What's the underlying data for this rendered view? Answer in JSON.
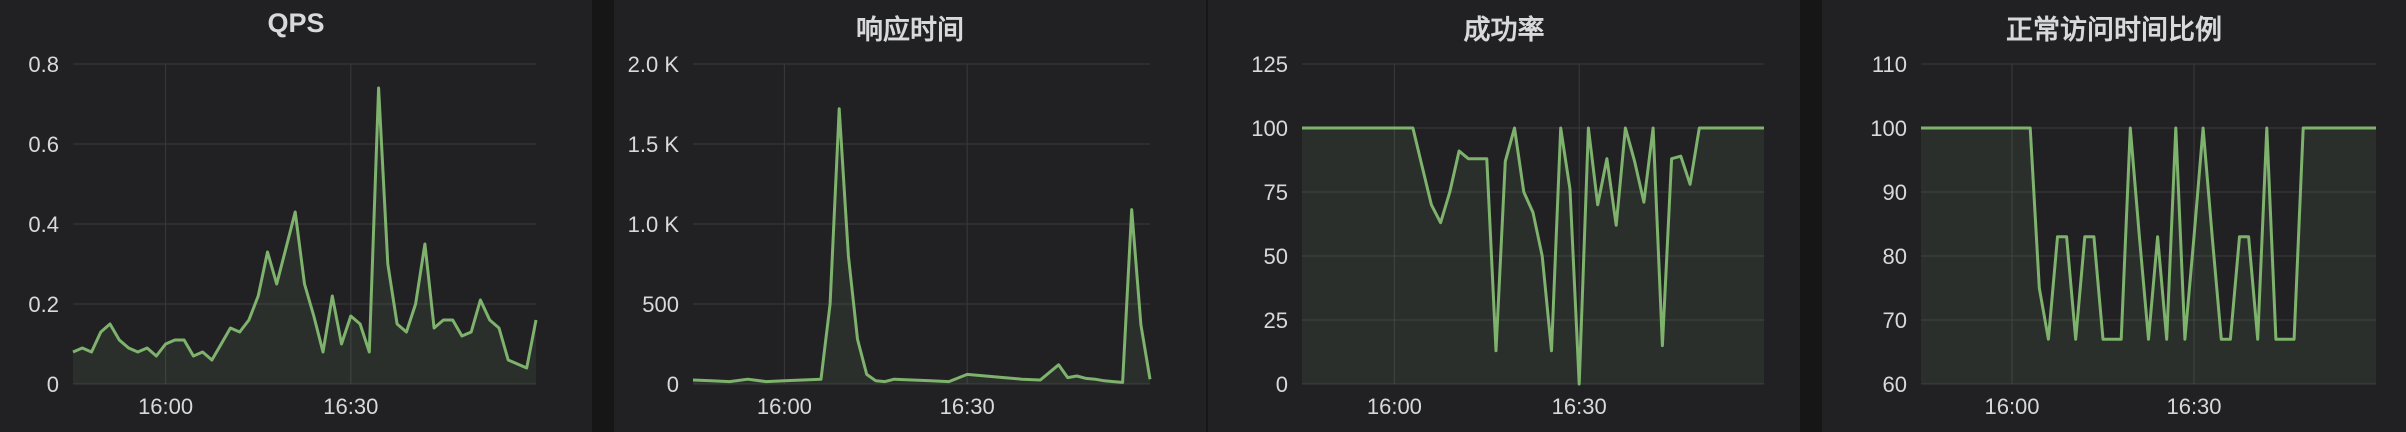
{
  "colors": {
    "series": "#7eb26d",
    "fill": "rgba(126,178,109,0.10)",
    "grid": "#3a3a3d",
    "text": "#d8d9da",
    "panel": "#212124",
    "background": "#161616"
  },
  "chart_data": [
    {
      "type": "area",
      "title": "QPS",
      "xlabel": "",
      "ylabel": "",
      "ylim": [
        0,
        0.8
      ],
      "yticks": [
        0,
        0.2,
        0.4,
        0.6,
        0.8
      ],
      "ytick_labels": [
        "0",
        "0.2",
        "0.4",
        "0.6",
        "0.8"
      ],
      "xlim": [
        0,
        50
      ],
      "xticks": [
        10,
        30
      ],
      "xtick_labels": [
        "16:00",
        "16:30"
      ],
      "grid": true,
      "series": [
        {
          "x": [
            0,
            1,
            2,
            3,
            4,
            5,
            6,
            7,
            8,
            9,
            10,
            11,
            12,
            13,
            14,
            15,
            16,
            17,
            18,
            19,
            20,
            21,
            22,
            23,
            24,
            25,
            26,
            27,
            28,
            29,
            30,
            31,
            32,
            33,
            34,
            35,
            36,
            37,
            38,
            39,
            40,
            41,
            42,
            43,
            44,
            45,
            46,
            47,
            48,
            49,
            50
          ],
          "values": [
            0.08,
            0.09,
            0.08,
            0.13,
            0.15,
            0.11,
            0.09,
            0.08,
            0.09,
            0.07,
            0.1,
            0.11,
            0.11,
            0.07,
            0.08,
            0.06,
            0.1,
            0.14,
            0.13,
            0.16,
            0.22,
            0.33,
            0.25,
            0.34,
            0.43,
            0.25,
            0.17,
            0.08,
            0.22,
            0.1,
            0.17,
            0.15,
            0.08,
            0.74,
            0.3,
            0.15,
            0.13,
            0.2,
            0.35,
            0.14,
            0.16,
            0.16,
            0.12,
            0.13,
            0.21,
            0.16,
            0.14,
            0.06,
            0.05,
            0.04,
            0.16
          ]
        }
      ]
    },
    {
      "type": "area",
      "title": "响应时间",
      "xlabel": "",
      "ylabel": "",
      "ylim": [
        0,
        2000
      ],
      "yticks": [
        0,
        500,
        1000,
        1500,
        2000
      ],
      "ytick_labels": [
        "0",
        "500",
        "1.0 K",
        "1.5 K",
        "2.0 K"
      ],
      "xlim": [
        0,
        50
      ],
      "xticks": [
        10,
        30
      ],
      "xtick_labels": [
        "16:00",
        "16:30"
      ],
      "grid": true,
      "series": [
        {
          "x": [
            0,
            2,
            4,
            6,
            8,
            10,
            12,
            14,
            15,
            16,
            17,
            18,
            19,
            20,
            21,
            22,
            24,
            26,
            28,
            30,
            32,
            34,
            36,
            38,
            40,
            41,
            42,
            43,
            44,
            45,
            46,
            47,
            48,
            49,
            50
          ],
          "values": [
            25,
            20,
            15,
            30,
            15,
            20,
            25,
            30,
            500,
            1720,
            800,
            280,
            60,
            20,
            15,
            30,
            25,
            20,
            15,
            60,
            50,
            40,
            30,
            25,
            120,
            40,
            50,
            35,
            30,
            20,
            15,
            10,
            1090,
            370,
            30
          ]
        }
      ]
    },
    {
      "type": "area",
      "title": "成功率",
      "xlabel": "",
      "ylabel": "",
      "ylim": [
        0,
        125
      ],
      "yticks": [
        0,
        25,
        50,
        75,
        100,
        125
      ],
      "ytick_labels": [
        "0",
        "25",
        "50",
        "75",
        "100",
        "125"
      ],
      "xlim": [
        0,
        50
      ],
      "xticks": [
        10,
        30
      ],
      "xtick_labels": [
        "16:00",
        "16:30"
      ],
      "grid": true,
      "series": [
        {
          "x": [
            0,
            2,
            4,
            6,
            8,
            10,
            12,
            13,
            14,
            15,
            16,
            17,
            18,
            19,
            20,
            21,
            22,
            23,
            24,
            25,
            26,
            27,
            28,
            29,
            30,
            31,
            32,
            33,
            34,
            35,
            36,
            37,
            38,
            39,
            40,
            41,
            42,
            43,
            44,
            45,
            46,
            48,
            50
          ],
          "values": [
            100,
            100,
            100,
            100,
            100,
            100,
            100,
            85,
            70,
            63,
            75,
            91,
            88,
            88,
            88,
            13,
            87,
            100,
            75,
            67,
            50,
            13,
            100,
            76,
            0,
            100,
            70,
            88,
            62,
            100,
            87,
            71,
            100,
            15,
            88,
            89,
            78,
            100,
            100,
            100,
            100,
            100,
            100
          ]
        }
      ]
    },
    {
      "type": "area",
      "title": "正常访问时间比例",
      "xlabel": "",
      "ylabel": "",
      "ylim": [
        60,
        110
      ],
      "yticks": [
        60,
        70,
        80,
        90,
        100,
        110
      ],
      "ytick_labels": [
        "60",
        "70",
        "80",
        "90",
        "100",
        "110"
      ],
      "xlim": [
        0,
        50
      ],
      "xticks": [
        10,
        30
      ],
      "xtick_labels": [
        "16:00",
        "16:30"
      ],
      "grid": true,
      "series": [
        {
          "x": [
            0,
            4,
            8,
            12,
            13,
            14,
            15,
            16,
            17,
            18,
            19,
            20,
            21,
            22,
            23,
            24,
            25,
            26,
            27,
            28,
            29,
            30,
            31,
            32,
            33,
            34,
            35,
            36,
            37,
            38,
            39,
            40,
            41,
            42,
            43,
            44,
            45,
            46,
            48,
            50
          ],
          "values": [
            100,
            100,
            100,
            100,
            75,
            67,
            83,
            83,
            67,
            83,
            83,
            67,
            67,
            67,
            100,
            83,
            67,
            83,
            67,
            100,
            67,
            83,
            100,
            83,
            67,
            67,
            83,
            83,
            67,
            100,
            67,
            67,
            67,
            100,
            100,
            100,
            100,
            100,
            100,
            100
          ]
        }
      ]
    }
  ]
}
